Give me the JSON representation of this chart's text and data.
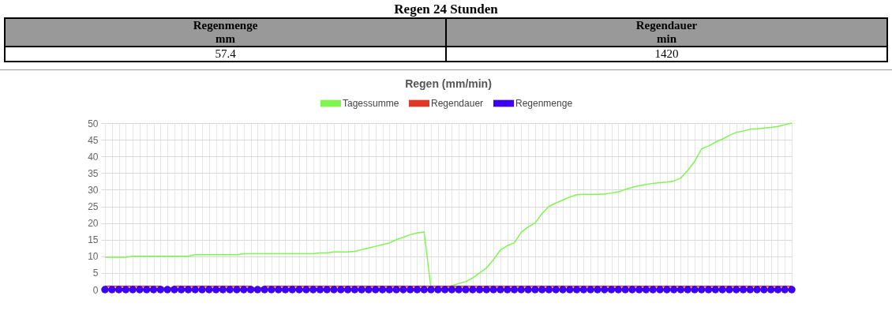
{
  "chart_data": [
    {
      "type": "other",
      "title": "Regen 24 Stunden",
      "categories": [
        "Regenmenge",
        "Regendauer"
      ],
      "annotations": [
        "mm",
        "min"
      ],
      "values": [
        57.4,
        1420
      ],
      "data_labels": true
    },
    {
      "type": "line",
      "title": "Regen (mm/min)",
      "legend": "top",
      "grid": true,
      "ylim": [
        0,
        50
      ],
      "yticks": [
        0,
        5,
        10,
        15,
        20,
        25,
        30,
        35,
        40,
        45,
        50
      ],
      "categories": [
        null,
        null,
        null,
        null,
        null,
        null,
        null,
        null,
        null,
        null,
        null,
        null,
        null,
        null,
        null,
        null,
        null,
        null,
        null,
        null,
        null,
        null,
        null,
        null,
        null,
        null,
        null,
        null,
        null,
        null,
        null,
        null,
        null,
        null,
        null,
        null,
        null,
        null,
        null,
        null,
        null,
        null,
        null,
        null,
        null,
        null,
        null,
        null,
        null,
        null,
        null,
        null,
        null,
        null,
        null,
        null,
        null,
        null,
        null,
        null,
        null,
        null,
        null,
        null,
        null,
        null,
        null,
        null,
        null,
        null,
        null,
        null,
        null,
        null,
        null,
        null,
        null,
        null,
        null,
        null,
        null,
        null,
        null,
        null,
        null,
        null,
        null,
        null,
        null,
        null,
        null,
        null,
        null,
        null,
        null,
        null,
        null,
        null,
        null,
        null
      ],
      "series": [
        {
          "name": "Tagessumme",
          "color": "#80f550",
          "marker": "none",
          "values": [
            9.7,
            9.7,
            9.7,
            9.7,
            10,
            10,
            10,
            10,
            10,
            10,
            10,
            10,
            10,
            10.5,
            10.5,
            10.5,
            10.5,
            10.5,
            10.5,
            10.5,
            10.8,
            10.8,
            10.8,
            10.8,
            10.8,
            10.8,
            10.8,
            10.8,
            10.8,
            10.8,
            10.8,
            11,
            11,
            11.3,
            11.3,
            11.3,
            11.5,
            12,
            12.5,
            13,
            13.5,
            14,
            15,
            15.7,
            16.5,
            17,
            17.3,
            0.3,
            0.4,
            0.6,
            1.2,
            1.8,
            2.4,
            3.5,
            5,
            6.5,
            9,
            11.9,
            13.2,
            14,
            17.2,
            18.8,
            20,
            22.8,
            25,
            26,
            26.9,
            27.8,
            28.5,
            28.6,
            28.6,
            28.6,
            28.7,
            29,
            29.3,
            30.1,
            30.7,
            31.2,
            31.6,
            31.9,
            32.1,
            32.3,
            32.6,
            33.5,
            35.8,
            38.5,
            42.3,
            43.1,
            44.3,
            45.2,
            46.3,
            47.2,
            47.6,
            48.2,
            48.3,
            48.5,
            48.7,
            49,
            49.5,
            50
          ]
        },
        {
          "name": "Regendauer",
          "color": "#e03826",
          "marker": "none",
          "values": [
            1,
            1,
            1,
            1,
            1,
            1,
            1,
            1,
            1,
            0,
            1,
            1,
            1,
            1,
            1,
            1,
            1,
            1,
            1,
            1,
            1,
            1,
            0,
            1,
            1,
            1,
            1,
            1,
            1,
            1,
            1,
            1,
            1,
            1,
            1,
            1,
            1,
            1,
            1,
            1,
            1,
            1,
            1,
            1,
            1,
            1,
            1,
            1,
            1,
            1,
            1,
            1,
            1,
            1,
            1,
            1,
            1,
            1,
            1,
            1,
            1,
            1,
            1,
            1,
            1,
            1,
            1,
            1,
            1,
            1,
            1,
            1,
            1,
            1,
            1,
            1,
            1,
            1,
            1,
            1,
            1,
            1,
            1,
            1,
            1,
            1,
            1,
            1,
            1,
            1,
            1,
            1,
            1,
            1,
            1,
            1,
            1,
            1,
            1,
            1
          ]
        },
        {
          "name": "Regenmenge",
          "color": "#3c00f5",
          "marker": "circle",
          "values": [
            0,
            0,
            0,
            0,
            0,
            0,
            0,
            0,
            0,
            0,
            0,
            0,
            0,
            0,
            0,
            0,
            0,
            0,
            0,
            0,
            0,
            0,
            0,
            0,
            0,
            0,
            0,
            0,
            0,
            0,
            0,
            0,
            0,
            0,
            0,
            0,
            0,
            0,
            0,
            0,
            0,
            0,
            0,
            0,
            0,
            0,
            0,
            0,
            0,
            0,
            0,
            0,
            0,
            0,
            0,
            0,
            0,
            0,
            0,
            0,
            0,
            0,
            0,
            0,
            0,
            0,
            0,
            0,
            0,
            0,
            0,
            0,
            0,
            0,
            0,
            0,
            0,
            0,
            0,
            0,
            0,
            0,
            0,
            0,
            0,
            0,
            0,
            0,
            0,
            0,
            0,
            0,
            0,
            0,
            0,
            0,
            0,
            0,
            0,
            0
          ]
        }
      ]
    }
  ]
}
